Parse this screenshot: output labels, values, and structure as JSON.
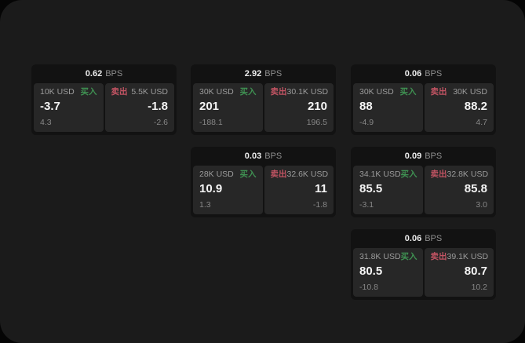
{
  "labels": {
    "buy": "买入",
    "sell": "卖出",
    "bps_unit": "BPS"
  },
  "colors": {
    "frame_bg": "#1b1b1b",
    "card_bg": "#121212",
    "panel_bg": "#272727",
    "buy_green": "#3f9152",
    "sell_red": "#c25463",
    "value_white": "#f4f4f4",
    "label_gray": "#9c9c9c"
  },
  "cards": [
    {
      "bps": "0.62",
      "buy": {
        "size": "10K USD",
        "value": "-3.7",
        "sub": "4.3"
      },
      "sell": {
        "size": "5.5K USD",
        "value": "-1.8",
        "sub": "-2.6"
      }
    },
    {
      "bps": "2.92",
      "buy": {
        "size": "30K USD",
        "value": "201",
        "sub": "-188.1"
      },
      "sell": {
        "size": "30.1K USD",
        "value": "210",
        "sub": "196.5"
      }
    },
    {
      "bps": "0.06",
      "buy": {
        "size": "30K USD",
        "value": "88",
        "sub": "-4.9"
      },
      "sell": {
        "size": "30K USD",
        "value": "88.2",
        "sub": "4.7"
      }
    },
    {
      "bps": "0.03",
      "buy": {
        "size": "28K USD",
        "value": "10.9",
        "sub": "1.3"
      },
      "sell": {
        "size": "32.6K USD",
        "value": "11",
        "sub": "-1.8"
      }
    },
    {
      "bps": "0.09",
      "buy": {
        "size": "34.1K USD",
        "value": "85.5",
        "sub": "-3.1"
      },
      "sell": {
        "size": "32.8K USD",
        "value": "85.8",
        "sub": "3.0"
      }
    },
    {
      "bps": "0.06",
      "buy": {
        "size": "31.8K USD",
        "value": "80.5",
        "sub": "-10.8"
      },
      "sell": {
        "size": "39.1K USD",
        "value": "80.7",
        "sub": "10.2"
      }
    }
  ]
}
